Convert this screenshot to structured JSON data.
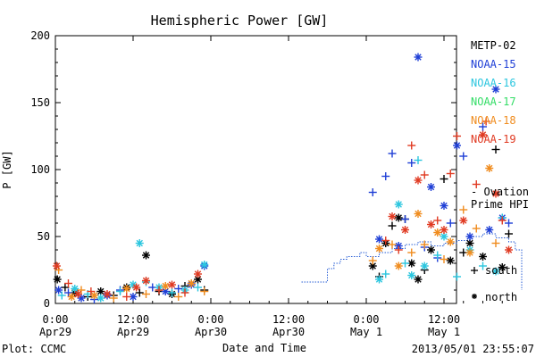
{
  "chart_data": {
    "type": "scatter",
    "title": "Hemispheric Power [GW]",
    "ylabel": "P [GW]",
    "xlabel": "Date and Time",
    "ylim": [
      0,
      200
    ],
    "y_ticks": [
      0,
      50,
      100,
      150,
      200
    ],
    "xlim_hours": [
      0,
      72
    ],
    "x_ticks": [
      {
        "line1": "0:00",
        "line2": "Apr29",
        "h": 0
      },
      {
        "line1": "12:00",
        "line2": "Apr29",
        "h": 12
      },
      {
        "line1": "0:00",
        "line2": "Apr30",
        "h": 24
      },
      {
        "line1": "12:00",
        "line2": "Apr30",
        "h": 36
      },
      {
        "line1": "0:00",
        "line2": "May 1",
        "h": 48
      },
      {
        "line1": "12:00",
        "line2": "May 1",
        "h": 60
      }
    ],
    "footer_left": "Plot: CCMC",
    "footer_right": "2013/05/01 23:55:07",
    "legend": [
      {
        "name": "METP-02",
        "color": "#000000"
      },
      {
        "name": "NOAA-15",
        "color": "#1f3fd6"
      },
      {
        "name": "NOAA-16",
        "color": "#2bc6df"
      },
      {
        "name": "NOAA-17",
        "color": "#33dd66"
      },
      {
        "name": "NOAA-18",
        "color": "#f08c1e"
      },
      {
        "name": "NOAA-19",
        "color": "#e03a22"
      }
    ],
    "ovation_label": [
      "- Ovation",
      "Prime HPI"
    ],
    "ovation_color": "#2a5fd6",
    "marker_legend": [
      {
        "symbol": "+",
        "label": "south"
      },
      {
        "symbol": "*",
        "label": "north"
      }
    ],
    "ovation_step": [
      [
        38,
        16
      ],
      [
        42,
        16
      ],
      [
        42,
        26
      ],
      [
        43,
        26
      ],
      [
        43,
        30
      ],
      [
        44,
        30
      ],
      [
        44,
        33
      ],
      [
        45,
        33
      ],
      [
        45,
        35
      ],
      [
        47,
        35
      ],
      [
        47,
        38
      ],
      [
        48,
        38
      ],
      [
        48,
        35
      ],
      [
        50,
        35
      ],
      [
        50,
        38
      ],
      [
        52,
        38
      ],
      [
        52,
        41
      ],
      [
        54,
        41
      ],
      [
        54,
        44
      ],
      [
        56,
        44
      ],
      [
        56,
        46
      ],
      [
        58,
        46
      ],
      [
        58,
        43
      ],
      [
        60,
        43
      ],
      [
        60,
        45
      ],
      [
        62,
        45
      ],
      [
        62,
        47
      ],
      [
        64,
        47
      ],
      [
        64,
        50
      ],
      [
        66,
        50
      ],
      [
        66,
        52
      ],
      [
        68,
        52
      ],
      [
        68,
        49
      ],
      [
        70,
        49
      ],
      [
        70,
        46
      ],
      [
        71,
        46
      ],
      [
        71,
        40
      ],
      [
        72,
        40
      ],
      [
        72,
        10
      ]
    ],
    "series": [
      {
        "name": "METP-02",
        "color": "#000000",
        "points": [
          [
            0.3,
            18,
            "*"
          ],
          [
            1.5,
            12,
            "+"
          ],
          [
            3,
            8,
            "*"
          ],
          [
            5,
            5,
            "+"
          ],
          [
            7,
            9,
            "*"
          ],
          [
            9,
            6,
            "+"
          ],
          [
            11,
            12,
            "*"
          ],
          [
            13,
            8,
            "+"
          ],
          [
            14,
            36,
            "*"
          ],
          [
            16,
            9,
            "+"
          ],
          [
            18,
            7,
            "*"
          ],
          [
            20,
            13,
            "+"
          ],
          [
            22,
            18,
            "*"
          ],
          [
            23,
            10,
            "+"
          ],
          [
            49,
            28,
            "*"
          ],
          [
            50,
            20,
            "+"
          ],
          [
            51,
            45,
            "*"
          ],
          [
            52,
            58,
            "+"
          ],
          [
            53,
            64,
            "*"
          ],
          [
            54,
            63,
            "+"
          ],
          [
            55,
            30,
            "*"
          ],
          [
            56,
            18,
            "*"
          ],
          [
            57,
            25,
            "+"
          ],
          [
            58,
            40,
            "*"
          ],
          [
            60,
            93,
            "+"
          ],
          [
            61,
            32,
            "*"
          ],
          [
            63,
            38,
            "+"
          ],
          [
            64,
            45,
            "*"
          ],
          [
            66,
            35,
            "*"
          ],
          [
            68,
            115,
            "+"
          ],
          [
            69,
            27,
            "*"
          ],
          [
            70,
            52,
            "+"
          ]
        ]
      },
      {
        "name": "NOAA-15",
        "color": "#1f3fd6",
        "points": [
          [
            0.5,
            10,
            "*"
          ],
          [
            2,
            8,
            "+"
          ],
          [
            4,
            4,
            "*"
          ],
          [
            6,
            3,
            "+"
          ],
          [
            8,
            6,
            "*"
          ],
          [
            10,
            10,
            "+"
          ],
          [
            12,
            5,
            "*"
          ],
          [
            15,
            12,
            "+"
          ],
          [
            17,
            9,
            "*"
          ],
          [
            19,
            11,
            "+"
          ],
          [
            21,
            14,
            "*"
          ],
          [
            23,
            28,
            "*"
          ],
          [
            49,
            83,
            "+"
          ],
          [
            50,
            48,
            "*"
          ],
          [
            51,
            95,
            "+"
          ],
          [
            52,
            112,
            "+"
          ],
          [
            53,
            43,
            "*"
          ],
          [
            54,
            63,
            "+"
          ],
          [
            55,
            105,
            "+"
          ],
          [
            56,
            184,
            "*"
          ],
          [
            57,
            42,
            "+"
          ],
          [
            58,
            87,
            "*"
          ],
          [
            59,
            34,
            "+"
          ],
          [
            60,
            73,
            "*"
          ],
          [
            61,
            60,
            "+"
          ],
          [
            62,
            118,
            "*"
          ],
          [
            63,
            110,
            "+"
          ],
          [
            64,
            50,
            "*"
          ],
          [
            66,
            132,
            "+"
          ],
          [
            67,
            55,
            "*"
          ],
          [
            68,
            160,
            "*"
          ],
          [
            69,
            64,
            "*"
          ],
          [
            70,
            60,
            "+"
          ]
        ]
      },
      {
        "name": "NOAA-16",
        "color": "#2bc6df",
        "points": [
          [
            1,
            6,
            "+"
          ],
          [
            3,
            11,
            "*"
          ],
          [
            5,
            7,
            "+"
          ],
          [
            7,
            4,
            "*"
          ],
          [
            10,
            9,
            "+"
          ],
          [
            12,
            14,
            "*"
          ],
          [
            13,
            45,
            "*"
          ],
          [
            14,
            16,
            "+"
          ],
          [
            16,
            12,
            "*"
          ],
          [
            18,
            8,
            "+"
          ],
          [
            20,
            10,
            "*"
          ],
          [
            22,
            12,
            "+"
          ],
          [
            23,
            29,
            "*"
          ],
          [
            50,
            18,
            "*"
          ],
          [
            51,
            22,
            "+"
          ],
          [
            53,
            74,
            "*"
          ],
          [
            54,
            30,
            "+"
          ],
          [
            55,
            21,
            "*"
          ],
          [
            56,
            107,
            "+"
          ],
          [
            57,
            28,
            "*"
          ],
          [
            59,
            36,
            "+"
          ],
          [
            60,
            50,
            "*"
          ],
          [
            62,
            20,
            "+"
          ],
          [
            64,
            40,
            "*"
          ],
          [
            66,
            28,
            "+"
          ],
          [
            68,
            24,
            "*"
          ],
          [
            69,
            64,
            "+"
          ]
        ]
      },
      {
        "name": "NOAA-18",
        "color": "#f08c1e",
        "points": [
          [
            0.5,
            25,
            "+"
          ],
          [
            2.5,
            5,
            "*"
          ],
          [
            4,
            10,
            "+"
          ],
          [
            6,
            6,
            "*"
          ],
          [
            9,
            4,
            "+"
          ],
          [
            11,
            11,
            "*"
          ],
          [
            14,
            7,
            "+"
          ],
          [
            17,
            13,
            "*"
          ],
          [
            19,
            5,
            "+"
          ],
          [
            21,
            15,
            "*"
          ],
          [
            23,
            9,
            "+"
          ],
          [
            49,
            32,
            "+"
          ],
          [
            50,
            41,
            "*"
          ],
          [
            52,
            44,
            "+"
          ],
          [
            53,
            28,
            "*"
          ],
          [
            55,
            38,
            "+"
          ],
          [
            56,
            67,
            "*"
          ],
          [
            57,
            44,
            "+"
          ],
          [
            59,
            53,
            "*"
          ],
          [
            60,
            33,
            "+"
          ],
          [
            61,
            46,
            "*"
          ],
          [
            63,
            70,
            "+"
          ],
          [
            64,
            38,
            "*"
          ],
          [
            65,
            56,
            "+"
          ],
          [
            67,
            101,
            "*"
          ],
          [
            68,
            45,
            "+"
          ]
        ]
      },
      {
        "name": "NOAA-19",
        "color": "#e03a22",
        "points": [
          [
            0.2,
            28,
            "*"
          ],
          [
            2,
            15,
            "+"
          ],
          [
            3.5,
            7,
            "*"
          ],
          [
            5.5,
            9,
            "+"
          ],
          [
            8,
            7,
            "*"
          ],
          [
            11,
            5,
            "+"
          ],
          [
            12.5,
            12,
            "*"
          ],
          [
            14,
            17,
            "*"
          ],
          [
            16,
            10,
            "+"
          ],
          [
            18,
            14,
            "*"
          ],
          [
            20,
            8,
            "+"
          ],
          [
            22,
            22,
            "*"
          ],
          [
            51,
            47,
            "+"
          ],
          [
            52,
            65,
            "*"
          ],
          [
            53,
            40,
            "+"
          ],
          [
            54,
            55,
            "*"
          ],
          [
            55,
            118,
            "+"
          ],
          [
            56,
            92,
            "*"
          ],
          [
            57,
            96,
            "+"
          ],
          [
            58,
            59,
            "*"
          ],
          [
            59,
            62,
            "+"
          ],
          [
            60,
            55,
            "*"
          ],
          [
            61,
            97,
            "+"
          ],
          [
            62,
            125,
            "+"
          ],
          [
            63,
            62,
            "*"
          ],
          [
            65,
            89,
            "+"
          ],
          [
            66,
            126,
            "*"
          ],
          [
            66.5,
            136,
            "+"
          ],
          [
            68,
            82,
            "*"
          ],
          [
            69,
            62,
            "+"
          ],
          [
            70,
            40,
            "*"
          ]
        ]
      }
    ]
  }
}
